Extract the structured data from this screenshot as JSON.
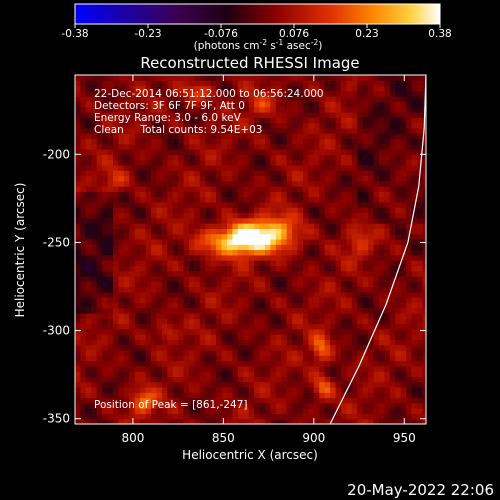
{
  "chart_data": {
    "type": "heatmap",
    "title": "Reconstructed RHESSI Image",
    "xlabel": "Heliocentric X (arcsec)",
    "ylabel": "Heliocentric Y (arcsec)",
    "xlim": [
      768,
      962
    ],
    "ylim": [
      -353,
      -155
    ],
    "xticks": [
      800,
      850,
      900,
      950
    ],
    "yticks": [
      -200,
      -250,
      -300,
      -350
    ],
    "colorbar": {
      "ticks": [
        "-0.38",
        "-0.23",
        "-0.076",
        "0.076",
        "0.23",
        "0.38"
      ],
      "range": [
        -0.38,
        0.38
      ],
      "label_prefix": "(photons cm",
      "label_sup1": "-2",
      "label_mid1": " s",
      "label_sup2": "-1",
      "label_mid2": " asec",
      "label_sup3": "-2",
      "label_suffix": ")"
    },
    "annotations": [
      "22-Dec-2014 06:51:12.000 to 06:56:24.000",
      "Detectors: 3F 6F 7F 9F, Att 0",
      "Energy Range: 3.0 - 6.0 keV",
      "Clean     Total counts: 9.54E+03"
    ],
    "peak_label": "Position of Peak = [861,-247]",
    "peak": [
      861,
      -247
    ],
    "limb_curve": [
      [
        909,
        -353
      ],
      [
        925,
        -320
      ],
      [
        940,
        -285
      ],
      [
        952,
        -250
      ],
      [
        958,
        -218
      ],
      [
        961,
        -185
      ],
      [
        962,
        -155
      ]
    ],
    "sources": [
      {
        "x": 860,
        "y": -248,
        "amp": 0.38,
        "sx": 9,
        "sy": 6
      },
      {
        "x": 878,
        "y": -245,
        "amp": 0.26,
        "sx": 10,
        "sy": 7
      },
      {
        "x": 842,
        "y": -250,
        "amp": 0.12,
        "sx": 8,
        "sy": 6
      },
      {
        "x": 904,
        "y": -310,
        "amp": 0.18,
        "sx": 4,
        "sy": 6
      },
      {
        "x": 905,
        "y": -332,
        "amp": 0.16,
        "sx": 4,
        "sy": 5
      },
      {
        "x": 806,
        "y": -340,
        "amp": 0.18,
        "sx": 5,
        "sy": 5
      },
      {
        "x": 818,
        "y": -300,
        "amp": 0.1,
        "sx": 4,
        "sy": 4
      },
      {
        "x": 835,
        "y": -165,
        "amp": 0.14,
        "sx": 6,
        "sy": 4
      },
      {
        "x": 872,
        "y": -172,
        "amp": 0.1,
        "sx": 6,
        "sy": 5
      },
      {
        "x": 790,
        "y": -215,
        "amp": 0.1,
        "sx": 5,
        "sy": 5
      },
      {
        "x": 925,
        "y": -250,
        "amp": 0.1,
        "sx": 5,
        "sy": 6
      }
    ]
  },
  "footer": {
    "timestamp": "20-May-2022 22:06"
  }
}
